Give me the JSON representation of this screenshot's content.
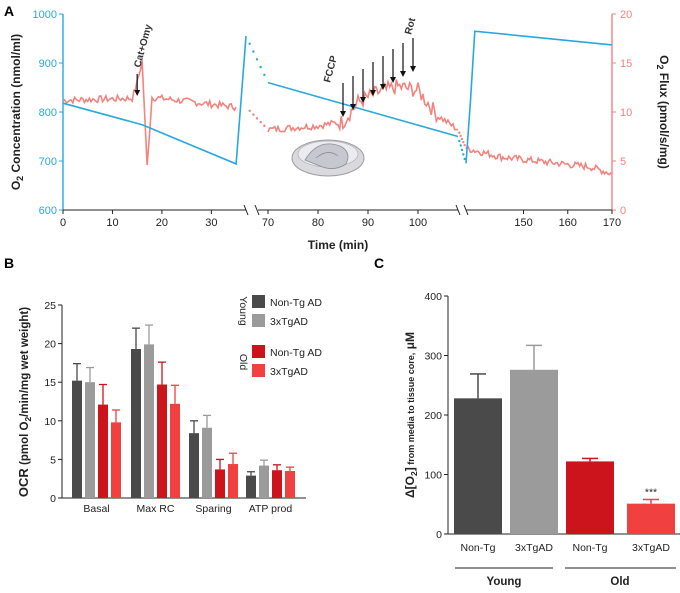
{
  "chart_data": [
    {
      "type": "line",
      "panel": "A",
      "xlabel": "Time (min)",
      "ylabel_left": "O2 Concentration (nmol/ml)",
      "ylabel_right": "O2 Flux (pmol/s/mg)",
      "ylabel_left_parts": [
        "O",
        "2",
        " Concentration (nmol/ml)"
      ],
      "ylabel_right_parts": [
        "O",
        "2",
        " Flux (pmol/s/mg)"
      ],
      "left_ticks": [
        "600",
        "700",
        "800",
        "900",
        "1000"
      ],
      "right_ticks": [
        "0",
        "5",
        "10",
        "15",
        "20"
      ],
      "ylim_left": [
        600,
        1000
      ],
      "ylim_right": [
        0,
        20
      ],
      "segments": [
        {
          "x_ticks": [
            "0",
            "10",
            "20",
            "30"
          ],
          "xlim": [
            0,
            37
          ]
        },
        {
          "x_ticks": [
            "70",
            "80",
            "90",
            "100"
          ],
          "xlim": [
            68,
            108
          ]
        },
        {
          "x_ticks": [
            "150",
            "160",
            "170"
          ],
          "xlim": [
            137,
            170
          ]
        }
      ],
      "series": [
        {
          "name": "O2 Concentration",
          "axis": "left",
          "color": "#29a8e0",
          "points": [
            [
              0,
              818
            ],
            [
              16,
              774
            ],
            [
              35,
              694
            ],
            [
              36,
              825
            ],
            [
              37,
              955
            ],
            [
              70,
              860
            ],
            [
              108,
              750
            ],
            [
              137,
              695
            ],
            [
              138,
              820
            ],
            [
              139,
              965
            ],
            [
              170,
              937
            ]
          ]
        },
        {
          "name": "O2 Flux",
          "axis": "right",
          "color": "#f4837d",
          "points": [
            [
              0,
              11.2
            ],
            [
              14,
              11.4
            ],
            [
              15,
              13
            ],
            [
              16,
              15.2
            ],
            [
              17,
              4.5
            ],
            [
              18,
              11.5
            ],
            [
              35,
              10.5
            ],
            [
              70,
              8.2
            ],
            [
              80,
              8.6
            ],
            [
              85,
              9
            ],
            [
              88,
              11
            ],
            [
              92,
              12
            ],
            [
              96,
              12.6
            ],
            [
              100,
              12.2
            ],
            [
              104,
              9.6
            ],
            [
              108,
              8.2
            ],
            [
              137,
              6.3
            ],
            [
              145,
              5.4
            ],
            [
              155,
              4.9
            ],
            [
              165,
              4.4
            ],
            [
              170,
              3.7
            ]
          ]
        }
      ],
      "annotations": [
        {
          "text": "Cat+Omy",
          "x": 15
        },
        {
          "text": "FCCP",
          "x": 82
        },
        {
          "text": "Rot",
          "x": 97
        }
      ]
    },
    {
      "type": "bar",
      "panel": "B",
      "title": "",
      "xlabel": "",
      "ylabel": "OCR (pmol O2/min/mg wet weight)",
      "ylabel_parts": [
        "OCR",
        " (pmol O",
        "2",
        "/min/mg wet weight)"
      ],
      "ylim": [
        0,
        25
      ],
      "y_ticks": [
        "0",
        "5",
        "10",
        "15",
        "20",
        "25"
      ],
      "categories": [
        "Basal",
        "Max RC",
        "Sparing",
        "ATP prod"
      ],
      "series": [
        {
          "name": "Non-Tg AD",
          "group": "Young",
          "color": "#4a4a4a",
          "values": [
            15.2,
            19.3,
            8.4,
            2.9
          ],
          "errors": [
            2.2,
            2.7,
            1.6,
            0.5
          ]
        },
        {
          "name": "3xTgAD",
          "group": "Young",
          "color": "#9b9b9b",
          "values": [
            15.0,
            19.9,
            9.1,
            4.2
          ],
          "errors": [
            1.9,
            2.5,
            1.6,
            0.7
          ]
        },
        {
          "name": "Non-Tg AD",
          "group": "Old",
          "color": "#cc141c",
          "values": [
            12.1,
            14.7,
            3.7,
            3.6
          ],
          "errors": [
            2.6,
            2.9,
            1.3,
            0.7
          ]
        },
        {
          "name": "3xTgAD",
          "group": "Old",
          "color": "#f04040",
          "values": [
            9.8,
            12.2,
            4.4,
            3.5
          ],
          "errors": [
            1.6,
            2.4,
            1.4,
            0.5
          ]
        }
      ],
      "legend_groups": [
        "Young",
        "Old"
      ]
    },
    {
      "type": "bar",
      "panel": "C",
      "ylabel": "Δ[O2] from media to tissue core, μM",
      "ylabel_parts": [
        "Δ[O",
        "2",
        "]",
        " from media to tissue core,",
        " μM"
      ],
      "ylim": [
        0,
        400
      ],
      "y_ticks": [
        "0",
        "100",
        "200",
        "300",
        "400"
      ],
      "categories": [
        "Non-Tg",
        "3xTgAD",
        "Non-Tg",
        "3xTgAD"
      ],
      "groups": [
        "Young",
        "Old"
      ],
      "values": [
        228,
        276,
        122,
        51
      ],
      "errors": [
        41,
        41,
        5,
        7
      ],
      "colors": [
        "#4a4a4a",
        "#9b9b9b",
        "#cc141c",
        "#f04040"
      ],
      "significance": [
        {
          "index": 3,
          "text": "***"
        }
      ]
    }
  ],
  "panel_labels": [
    "A",
    "B",
    "C"
  ]
}
